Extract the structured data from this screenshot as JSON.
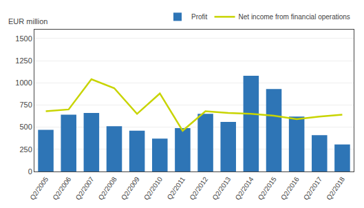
{
  "chart_data": {
    "type": "bar",
    "ylabel": "EUR million",
    "categories": [
      "Q2/2005",
      "Q2/2006",
      "Q2/2007",
      "Q2/2008",
      "Q2/2009",
      "Q2/2010",
      "Q2/2011",
      "Q2/2012",
      "Q2/2013",
      "Q2/2014",
      "Q2/2015",
      "Q2/2016",
      "Q2/2017",
      "Q2/2018"
    ],
    "series": [
      {
        "name": "Profit",
        "type": "bar",
        "color": "#2e75b6",
        "values": [
          470,
          640,
          660,
          510,
          460,
          370,
          490,
          650,
          560,
          1080,
          930,
          620,
          410,
          305
        ]
      },
      {
        "name": "Net income from financial operations",
        "type": "line",
        "color": "#c8d400",
        "values": [
          680,
          700,
          1040,
          940,
          650,
          880,
          460,
          680,
          660,
          650,
          630,
          590,
          620,
          640
        ]
      }
    ],
    "ylim": [
      0,
      1600
    ],
    "yticks": [
      0,
      250,
      500,
      750,
      1000,
      1250,
      1500
    ],
    "grid": true,
    "legend": "upper right"
  }
}
